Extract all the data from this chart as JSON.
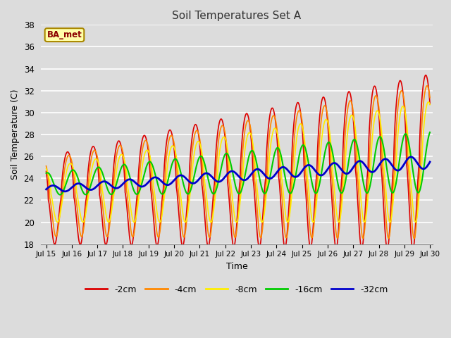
{
  "title": "Soil Temperatures Set A",
  "xlabel": "Time",
  "ylabel": "Soil Temperature (C)",
  "ylim": [
    18,
    38
  ],
  "yticks": [
    18,
    20,
    22,
    24,
    26,
    28,
    30,
    32,
    34,
    36,
    38
  ],
  "date_start": 15,
  "date_end": 30,
  "annotation": "BA_met",
  "legend_labels": [
    "-2cm",
    "-4cm",
    "-8cm",
    "-16cm",
    "-32cm"
  ],
  "line_colors": [
    "#dd0000",
    "#ff8800",
    "#ffee00",
    "#00cc00",
    "#0000cc"
  ],
  "line_widths": [
    1.2,
    1.2,
    1.2,
    1.5,
    2.0
  ],
  "bg_color": "#dcdcdc",
  "plot_bg": "#dcdcdc",
  "grid_color": "#ffffff",
  "n_points": 1440,
  "base_temp_2cm": 22.5,
  "base_temp_4cm": 22.5,
  "base_temp_8cm": 22.5,
  "base_temp_16cm": 23.0,
  "base_temp_32cm": 23.0,
  "trend_base": 0.18,
  "phase_4cm_lag": 1.2,
  "phase_8cm_lag": 2.5,
  "phase_16cm_lag": 5.0,
  "phase_32cm_lag": 10.0
}
